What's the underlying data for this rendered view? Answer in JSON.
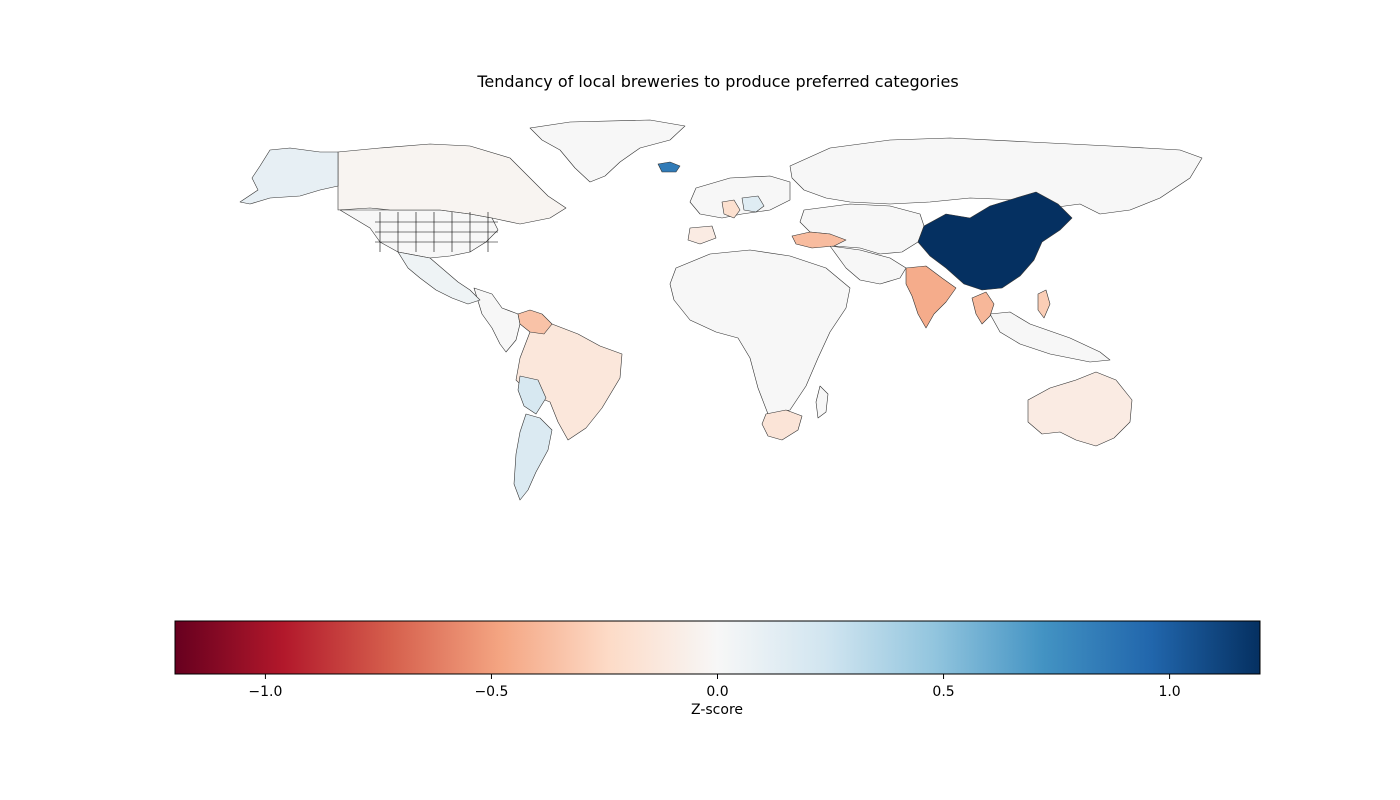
{
  "title": "Tendancy of local breweries to produce preferred categories",
  "colorbar": {
    "label": "Z-score",
    "range": [
      -1.2,
      1.2
    ],
    "ticks": [
      -1.0,
      -0.5,
      0.0,
      0.5,
      1.0
    ],
    "tick_labels": [
      "−1.0",
      "−0.5",
      "0.0",
      "0.5",
      "1.0"
    ],
    "colormap": "RdBu"
  },
  "regions": [
    {
      "name": "China",
      "z": 1.2
    },
    {
      "name": "Iceland",
      "z": 0.85
    },
    {
      "name": "Argentina",
      "z": 0.18
    },
    {
      "name": "Bolivia",
      "z": 0.2
    },
    {
      "name": "Alaska",
      "z": 0.1
    },
    {
      "name": "Mexico",
      "z": 0.06
    },
    {
      "name": "Canada",
      "z": -0.03
    },
    {
      "name": "Brazil",
      "z": -0.14
    },
    {
      "name": "Venezuela",
      "z": -0.35
    },
    {
      "name": "India",
      "z": -0.45
    },
    {
      "name": "Thailand",
      "z": -0.4
    },
    {
      "name": "Philippines",
      "z": -0.3
    },
    {
      "name": "Turkey",
      "z": -0.38
    },
    {
      "name": "Australia",
      "z": -0.1
    },
    {
      "name": "South Africa",
      "z": -0.16
    },
    {
      "name": "Russia",
      "z": 0.0
    },
    {
      "name": "Greenland",
      "z": 0.0
    },
    {
      "name": "Africa (rest)",
      "z": 0.0
    },
    {
      "name": "Germany",
      "z": -0.2
    },
    {
      "name": "Poland",
      "z": 0.15
    },
    {
      "name": "Spain",
      "z": -0.1
    }
  ]
}
